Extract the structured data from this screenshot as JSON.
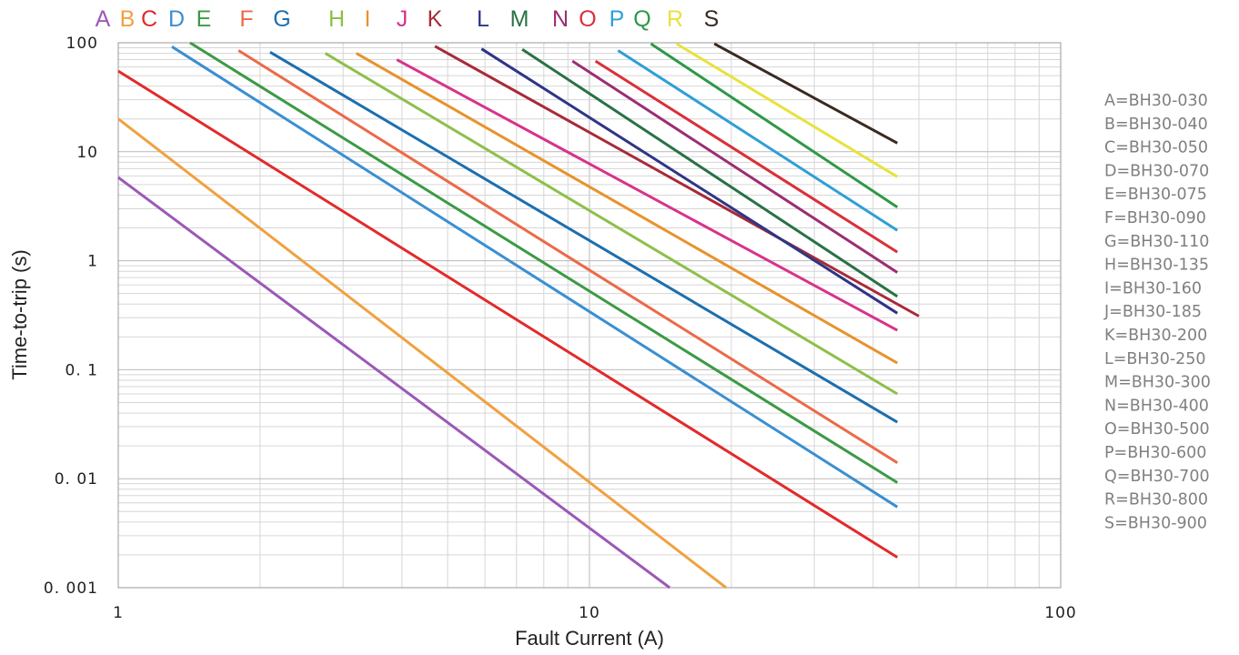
{
  "chart_data": {
    "type": "line",
    "x_scale": "log",
    "y_scale": "log",
    "xlim": [
      1,
      100
    ],
    "ylim": [
      0.001,
      100
    ],
    "grid": true,
    "xlabel": "Fault Current (A)",
    "ylabel": "Time-to-trip (s)",
    "x_ticks": [
      1,
      10,
      100
    ],
    "x_tick_labels": [
      "1",
      "10",
      "100"
    ],
    "y_ticks": [
      0.001,
      0.01,
      0.1,
      1,
      10,
      100
    ],
    "y_tick_labels": [
      "0. 001",
      "0. 01",
      "0. 1",
      "1",
      "10",
      "100"
    ],
    "legend_position": "right",
    "series": [
      {
        "letter": "A",
        "legend": "A=BH30-030",
        "color": "#9B59B6",
        "x": [
          1.0,
          14.8
        ],
        "y": [
          5.8,
          0.001
        ]
      },
      {
        "letter": "B",
        "legend": "B=BH30-040",
        "color": "#F0A140",
        "x": [
          1.0,
          19.5
        ],
        "y": [
          20,
          0.001
        ]
      },
      {
        "letter": "C",
        "legend": "C=BH30-050",
        "color": "#E22A2A",
        "x": [
          1.0,
          45
        ],
        "y": [
          55,
          0.0019
        ]
      },
      {
        "letter": "D",
        "legend": "D=BH30-070",
        "color": "#3A8FD2",
        "x": [
          1.3,
          45
        ],
        "y": [
          92,
          0.0055
        ]
      },
      {
        "letter": "E",
        "legend": "E=BH30-075",
        "color": "#3C9A45",
        "x": [
          1.42,
          45
        ],
        "y": [
          100,
          0.0092
        ]
      },
      {
        "letter": "F",
        "legend": "F=BH30-090",
        "color": "#EB6A48",
        "x": [
          1.8,
          45
        ],
        "y": [
          85,
          0.014
        ]
      },
      {
        "letter": "G",
        "legend": "G=BH30-110",
        "color": "#1C6FAE",
        "x": [
          2.1,
          45
        ],
        "y": [
          82,
          0.033
        ]
      },
      {
        "letter": "H",
        "legend": "H=BH30-135",
        "color": "#8DC04A",
        "x": [
          2.75,
          45
        ],
        "y": [
          80,
          0.06
        ]
      },
      {
        "letter": "I",
        "legend": "I=BH30-160",
        "color": "#E8922C",
        "x": [
          3.2,
          45
        ],
        "y": [
          80,
          0.115
        ]
      },
      {
        "letter": "J",
        "legend": "J=BH30-185",
        "color": "#D7338B",
        "x": [
          3.9,
          45
        ],
        "y": [
          70,
          0.23
        ]
      },
      {
        "letter": "K",
        "legend": "K=BH30-200",
        "color": "#A82A38",
        "x": [
          4.7,
          50
        ],
        "y": [
          93,
          0.31
        ]
      },
      {
        "letter": "L",
        "legend": "L=BH30-250",
        "color": "#2E3586",
        "x": [
          5.9,
          45
        ],
        "y": [
          88,
          0.33
        ]
      },
      {
        "letter": "M",
        "legend": "M=BH30-300",
        "color": "#2A7146",
        "x": [
          7.2,
          45
        ],
        "y": [
          87,
          0.47
        ]
      },
      {
        "letter": "N",
        "legend": "N=BH30-400",
        "color": "#9A2E72",
        "x": [
          9.2,
          45
        ],
        "y": [
          68,
          0.78
        ]
      },
      {
        "letter": "O",
        "legend": "O=BH30-500",
        "color": "#D9303A",
        "x": [
          10.3,
          45
        ],
        "y": [
          68,
          1.2
        ]
      },
      {
        "letter": "P",
        "legend": "P=BH30-600",
        "color": "#2E9FD6",
        "x": [
          11.5,
          45
        ],
        "y": [
          85,
          1.9
        ]
      },
      {
        "letter": "Q",
        "legend": "Q=BH30-700",
        "color": "#2E9848",
        "x": [
          13.5,
          45
        ],
        "y": [
          98,
          3.1
        ]
      },
      {
        "letter": "R",
        "legend": "R=BH30-800",
        "color": "#E8E23C",
        "x": [
          15.3,
          45
        ],
        "y": [
          98,
          5.9
        ]
      },
      {
        "letter": "S",
        "legend": "S=BH30-900",
        "color": "#3A2A22",
        "x": [
          18.4,
          45
        ],
        "y": [
          98,
          12
        ]
      }
    ]
  }
}
